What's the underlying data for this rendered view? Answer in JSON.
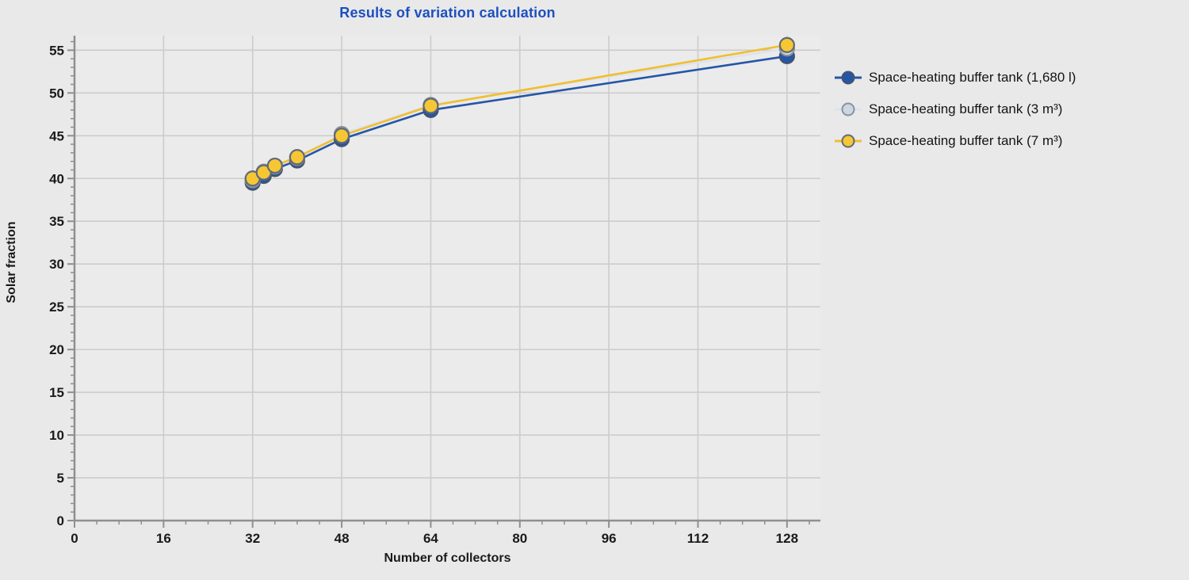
{
  "background_color": "#e9e9e9",
  "chart_data": {
    "type": "line",
    "title": "Results of variation calculation",
    "title_color": "#1d4fc0",
    "xlabel": "Number of collectors",
    "ylabel": "Solar fraction",
    "xlim": [
      0,
      134
    ],
    "ylim": [
      0,
      56.7
    ],
    "xticks_major": [
      0,
      16,
      32,
      48,
      64,
      80,
      96,
      112,
      128
    ],
    "xtick_minor_step": 4,
    "ytick_major_step": 5,
    "ytick_minor_step": 1,
    "grid": true,
    "grid_color": "#cccccc",
    "plot_bg_color": "#ebebeb",
    "axis_color": "#8f8f8f",
    "tick_label_color": "#1a1a1a",
    "legend_position": "right",
    "x": [
      32,
      34,
      36,
      40,
      48,
      64,
      128
    ],
    "series": [
      {
        "name": "Space-heating buffer tank (1,680 l)",
        "values": [
          39.5,
          40.3,
          41.1,
          42.1,
          44.6,
          48.0,
          54.3
        ],
        "line_color": "#2456a8",
        "marker_fill": "#2456a8",
        "marker_stroke": "#46536b"
      },
      {
        "name": "Space-heating buffer tank (3 m³)",
        "values": [
          39.8,
          40.8,
          41.4,
          42.4,
          45.2,
          48.6,
          55.2
        ],
        "line_color": "#dde3ee",
        "marker_fill": "#cdd7e4",
        "marker_stroke": "#8b929b"
      },
      {
        "name": "Space-heating buffer tank (7 m³)",
        "values": [
          40.0,
          40.7,
          41.5,
          42.5,
          45.0,
          48.5,
          55.6
        ],
        "line_color": "#f1be2d",
        "marker_fill": "#f7c733",
        "marker_stroke": "#5f6a7a"
      }
    ]
  }
}
